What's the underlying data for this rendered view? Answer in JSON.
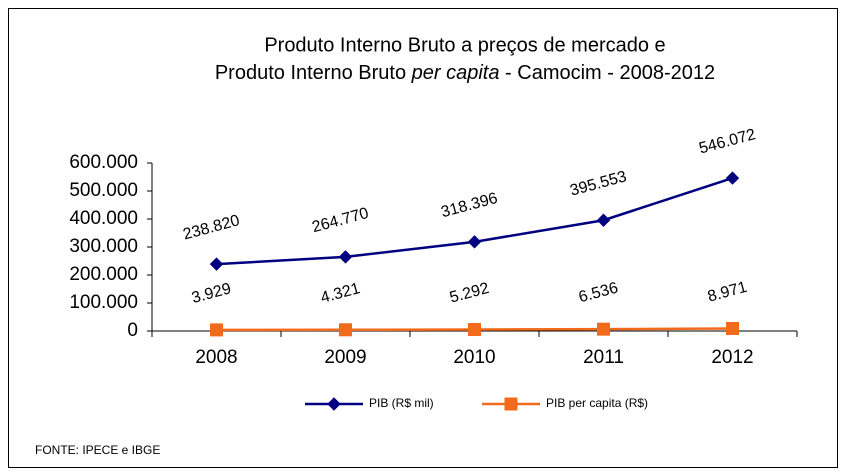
{
  "chart_data": {
    "type": "line",
    "title": [
      "Produto Interno Bruto a preços de mercado e",
      [
        "Produto Interno Bruto ",
        "per capita",
        " - Camocim - 2008-2012"
      ]
    ],
    "categories": [
      "2008",
      "2009",
      "2010",
      "2011",
      "2012"
    ],
    "series": [
      {
        "name": "PIB (R$ mil)",
        "color": "#000080",
        "marker": "diamond",
        "values": [
          238820,
          264770,
          318396,
          395553,
          546072
        ],
        "value_labels": [
          "238.820",
          "264.770",
          "318.396",
          "395.553",
          "546.072"
        ]
      },
      {
        "name": "PIB per capita (R$)",
        "color": "#f26b1d",
        "marker": "square",
        "values": [
          3929,
          4321,
          5292,
          6536,
          8971
        ],
        "value_labels": [
          "3.929",
          "4.321",
          "5.292",
          "6.536",
          "8.971"
        ]
      }
    ],
    "ylim": [
      0,
      600000
    ],
    "yticks": [
      0,
      {
        "value": 100000,
        "label": "100.000"
      },
      {
        "value": 200000,
        "label": "200.000"
      },
      {
        "value": 300000,
        "label": "300.000"
      },
      {
        "value": 400000,
        "label": "400.000"
      },
      {
        "value": 500000,
        "label": "500.000"
      },
      {
        "value": 600000,
        "label": "600.000"
      }
    ],
    "legend": "bottom",
    "source": "FONTE: IPECE e IBGE"
  }
}
